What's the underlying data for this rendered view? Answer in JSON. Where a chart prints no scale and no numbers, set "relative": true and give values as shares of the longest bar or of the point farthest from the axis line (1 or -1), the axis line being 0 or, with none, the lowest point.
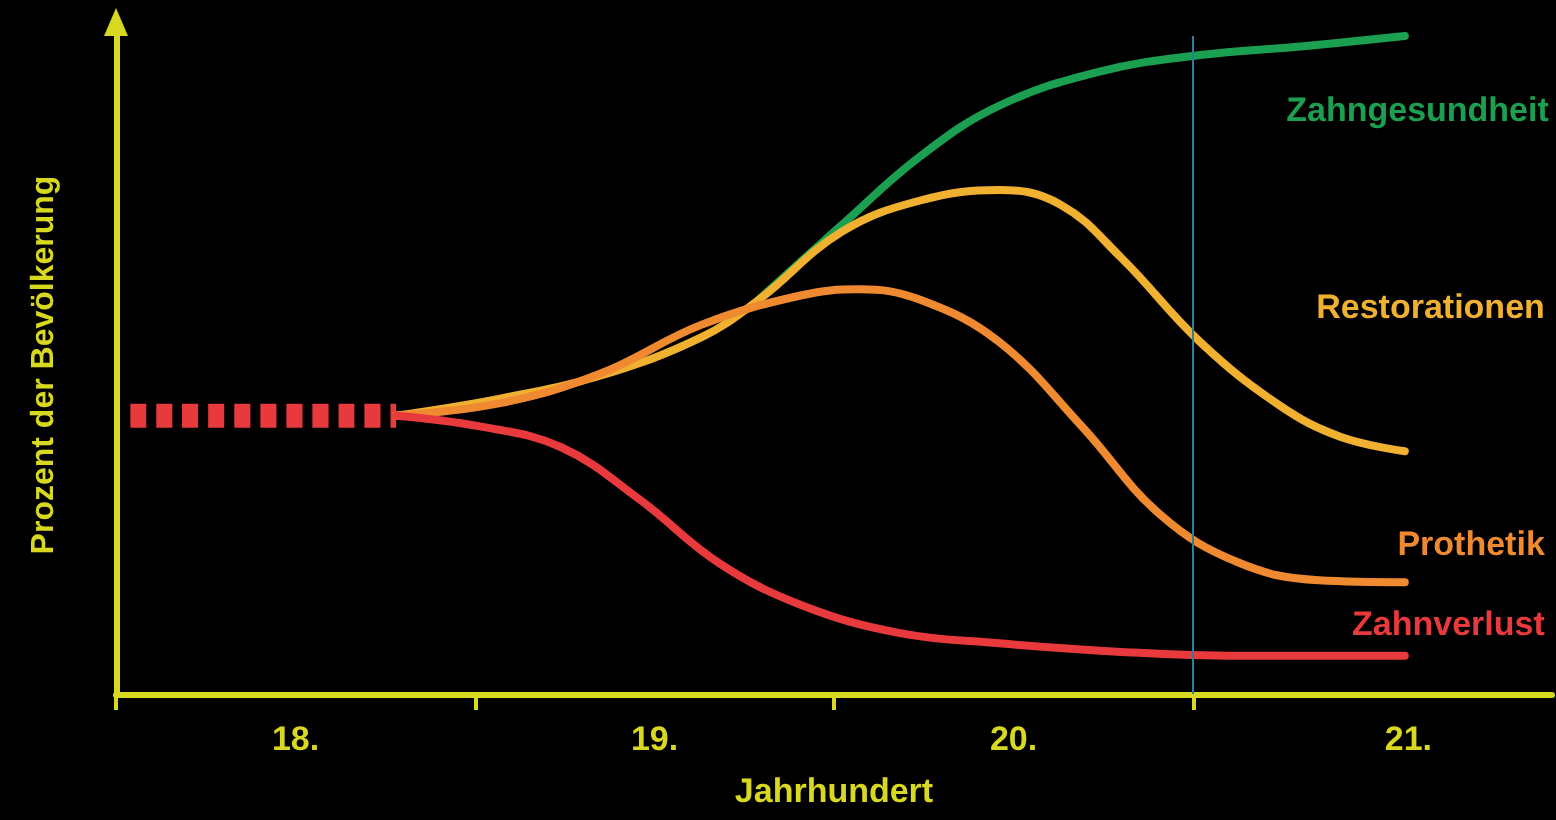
{
  "chart_data": {
    "type": "line",
    "relative": true,
    "xlabel": "Jahrhundert",
    "ylabel": "Prozent der Bevölkerung",
    "xlim": [
      17.5,
      21.5
    ],
    "xticks": [
      {
        "value": 17.5,
        "label": null
      },
      {
        "value": 18,
        "label": "18."
      },
      {
        "value": 18.5,
        "label": null
      },
      {
        "value": 19,
        "label": "19."
      },
      {
        "value": 19.5,
        "label": null
      },
      {
        "value": 20,
        "label": "20."
      },
      {
        "value": 20.5,
        "label": null
      },
      {
        "value": 21.1,
        "label": "21."
      }
    ],
    "marker": "none",
    "ref_lines": [
      {
        "axis": "x",
        "value": 20.5,
        "color": "#2a7f9a"
      }
    ],
    "series": [
      {
        "color": "#e83a3c",
        "line_style": "dashed",
        "x": [
          17.54,
          18.28
        ],
        "values": [
          0.423,
          0.423
        ]
      },
      {
        "name": "Zahngesundheit",
        "color": "#1aa050",
        "x": [
          19.29,
          19.52,
          19.74,
          19.96,
          20.24,
          20.52,
          20.8,
          21.09
        ],
        "values": [
          0.599,
          0.712,
          0.817,
          0.894,
          0.946,
          0.971,
          0.984,
          1
        ]
      },
      {
        "name": "Restorationen",
        "color": "#f0b030",
        "x": [
          18.28,
          18.57,
          18.85,
          19.13,
          19.29,
          19.52,
          19.74,
          19.96,
          20.13,
          20.3,
          20.52,
          20.74,
          20.91,
          21.09
        ],
        "values": [
          0.423,
          0.449,
          0.484,
          0.542,
          0.599,
          0.702,
          0.75,
          0.766,
          0.744,
          0.663,
          0.535,
          0.439,
          0.391,
          0.369
        ]
      },
      {
        "name": "Prothetik",
        "color": "#f08a30",
        "x": [
          18.28,
          18.57,
          18.85,
          19.13,
          19.41,
          19.57,
          19.74,
          19.96,
          20.19,
          20.41,
          20.63,
          20.85,
          21.09
        ],
        "values": [
          0.423,
          0.442,
          0.487,
          0.561,
          0.606,
          0.615,
          0.599,
          0.535,
          0.407,
          0.272,
          0.199,
          0.173,
          0.17
        ]
      },
      {
        "name": "Zahnverlust",
        "color": "#e83a3c",
        "x": [
          18.28,
          18.51,
          18.74,
          18.96,
          19.18,
          19.41,
          19.68,
          19.96,
          20.3,
          20.63,
          21.09
        ],
        "values": [
          0.423,
          0.407,
          0.375,
          0.295,
          0.199,
          0.135,
          0.093,
          0.077,
          0.064,
          0.058,
          0.058
        ]
      }
    ]
  }
}
